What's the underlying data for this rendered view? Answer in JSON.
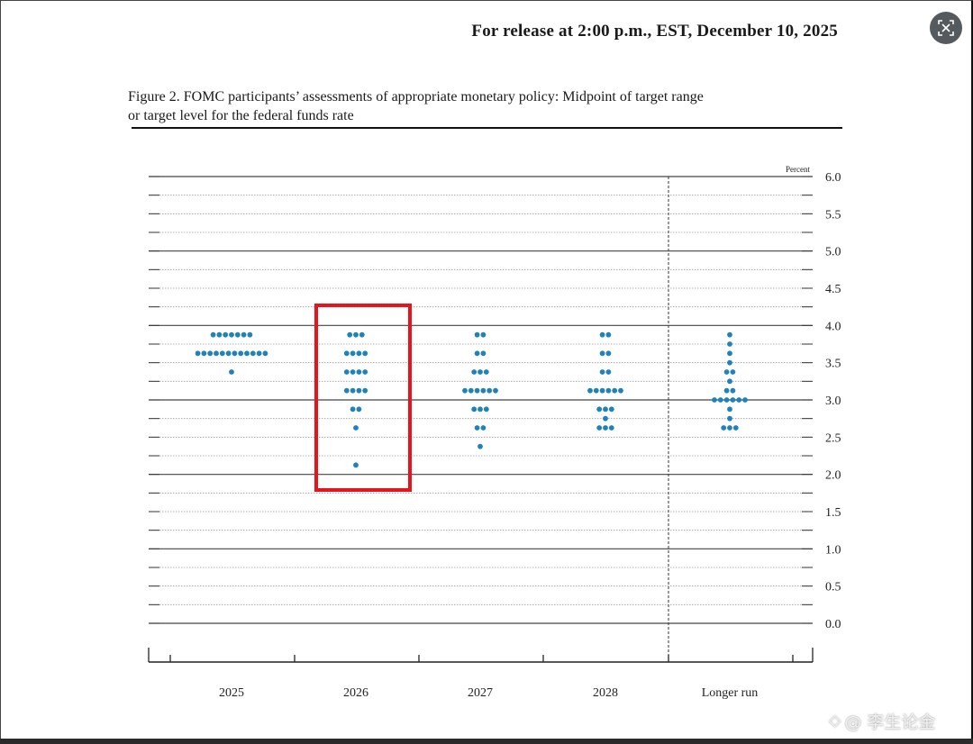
{
  "header": {
    "release_text": "For release at 2:00 p.m., EST, December 10, 2025"
  },
  "figure": {
    "title_line1": "Figure 2. FOMC participants’ assessments of appropriate monetary policy: Midpoint of target range",
    "title_line2": "or target level for the federal funds rate"
  },
  "highlight": {
    "category": "2026",
    "color": "#e8141b"
  },
  "watermark": {
    "text": "@ 李生论金"
  },
  "lens_icon": "lens-search-icon",
  "chart_data": {
    "type": "scatter",
    "subtype": "dot-plot",
    "unit_label": "Percent",
    "categories": [
      "2025",
      "2026",
      "2027",
      "2028",
      "Longer run"
    ],
    "ylim": [
      0,
      6
    ],
    "y_ticks": [
      "0.0",
      "0.5",
      "1.0",
      "1.5",
      "2.0",
      "2.5",
      "3.0",
      "3.5",
      "4.0",
      "4.5",
      "5.0",
      "5.5",
      "6.0"
    ],
    "dot_color": "#1f82b8",
    "grid": true,
    "points": [
      {
        "category": "2025",
        "values": [
          {
            "y": 3.875,
            "count": 7
          },
          {
            "y": 3.625,
            "count": 12
          },
          {
            "y": 3.375,
            "count": 1
          }
        ]
      },
      {
        "category": "2026",
        "values": [
          {
            "y": 3.875,
            "count": 3
          },
          {
            "y": 3.625,
            "count": 4
          },
          {
            "y": 3.375,
            "count": 4
          },
          {
            "y": 3.125,
            "count": 4
          },
          {
            "y": 2.875,
            "count": 2
          },
          {
            "y": 2.625,
            "count": 1
          },
          {
            "y": 2.125,
            "count": 1
          }
        ]
      },
      {
        "category": "2027",
        "values": [
          {
            "y": 3.875,
            "count": 2
          },
          {
            "y": 3.625,
            "count": 2
          },
          {
            "y": 3.375,
            "count": 3
          },
          {
            "y": 3.125,
            "count": 6
          },
          {
            "y": 2.875,
            "count": 3
          },
          {
            "y": 2.625,
            "count": 2
          },
          {
            "y": 2.375,
            "count": 1
          }
        ]
      },
      {
        "category": "2028",
        "values": [
          {
            "y": 3.875,
            "count": 2
          },
          {
            "y": 3.625,
            "count": 2
          },
          {
            "y": 3.375,
            "count": 2
          },
          {
            "y": 3.125,
            "count": 6
          },
          {
            "y": 2.875,
            "count": 3
          },
          {
            "y": 2.75,
            "count": 1
          },
          {
            "y": 2.625,
            "count": 3
          }
        ]
      },
      {
        "category": "Longer run",
        "values": [
          {
            "y": 3.875,
            "count": 1
          },
          {
            "y": 3.75,
            "count": 1
          },
          {
            "y": 3.625,
            "count": 1
          },
          {
            "y": 3.5,
            "count": 1
          },
          {
            "y": 3.375,
            "count": 2
          },
          {
            "y": 3.25,
            "count": 1
          },
          {
            "y": 3.125,
            "count": 2
          },
          {
            "y": 3.0,
            "count": 6
          },
          {
            "y": 2.875,
            "count": 1
          },
          {
            "y": 2.75,
            "count": 1
          },
          {
            "y": 2.625,
            "count": 3
          }
        ]
      }
    ]
  }
}
